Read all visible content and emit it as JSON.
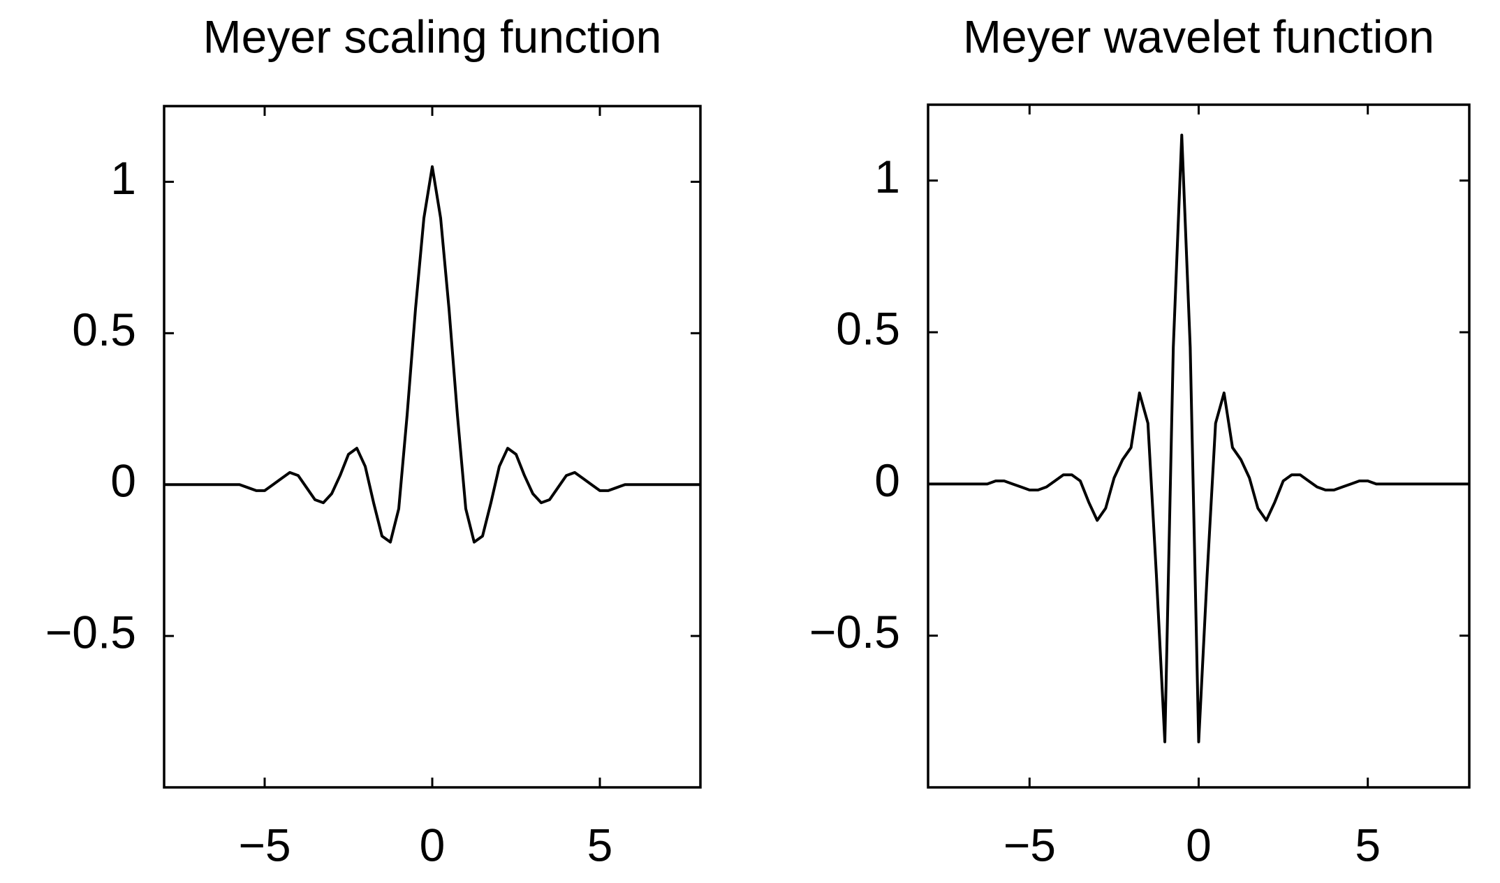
{
  "chart_data": [
    {
      "type": "line",
      "title": "Meyer scaling function",
      "color": "#000000",
      "xlim": [
        -8,
        8
      ],
      "ylim": [
        -1,
        1.25
      ],
      "xticks": [
        {
          "value": -5,
          "label": "−5"
        },
        0,
        5
      ],
      "yticks": [
        {
          "value": -0.5,
          "label": "−0.5"
        },
        0,
        0.5,
        1
      ],
      "x": [
        -8,
        -7.75,
        -7.5,
        -7.25,
        -7,
        -6.75,
        -6.5,
        -6.25,
        -6,
        -5.75,
        -5.5,
        -5.25,
        -5,
        -4.75,
        -4.5,
        -4.25,
        -4,
        -3.75,
        -3.5,
        -3.25,
        -3,
        -2.75,
        -2.5,
        -2.25,
        -2,
        -1.75,
        -1.5,
        -1.25,
        -1,
        -0.75,
        -0.5,
        -0.25,
        0,
        0.25,
        0.5,
        0.75,
        1,
        1.25,
        1.5,
        1.75,
        2,
        2.25,
        2.5,
        2.75,
        3,
        3.25,
        3.5,
        3.75,
        4,
        4.25,
        4.5,
        4.75,
        5,
        5.25,
        5.5,
        5.75,
        6,
        6.25,
        6.5,
        6.75,
        7,
        7.25,
        7.5,
        7.75,
        8
      ],
      "values": [
        0,
        0,
        0,
        0,
        0,
        0,
        0,
        0,
        0,
        0,
        -0.01,
        -0.02,
        -0.02,
        0,
        0.02,
        0.04,
        0.03,
        -0.01,
        -0.05,
        -0.06,
        -0.03,
        0.03,
        0.1,
        0.12,
        0.06,
        -0.06,
        -0.17,
        -0.19,
        -0.08,
        0.23,
        0.58,
        0.88,
        1.05,
        0.88,
        0.58,
        0.23,
        -0.08,
        -0.19,
        -0.17,
        -0.06,
        0.06,
        0.12,
        0.1,
        0.03,
        -0.03,
        -0.06,
        -0.05,
        -0.01,
        0.03,
        0.04,
        0.02,
        0,
        -0.02,
        -0.02,
        -0.01,
        0,
        0,
        0,
        0,
        0,
        0,
        0,
        0,
        0,
        0
      ]
    },
    {
      "type": "line",
      "title": "Meyer wavelet function",
      "color": "#000000",
      "xlim": [
        -8,
        8
      ],
      "ylim": [
        -1,
        1.25
      ],
      "xticks": [
        {
          "value": -5,
          "label": "−5"
        },
        0,
        5
      ],
      "yticks": [
        {
          "value": -0.5,
          "label": "−0.5"
        },
        0,
        0.5,
        1
      ],
      "x": [
        -8,
        -7.75,
        -7.5,
        -7.25,
        -7,
        -6.75,
        -6.5,
        -6.25,
        -6,
        -5.75,
        -5.5,
        -5.25,
        -5,
        -4.75,
        -4.5,
        -4.25,
        -4,
        -3.75,
        -3.5,
        -3.25,
        -3,
        -2.75,
        -2.5,
        -2.25,
        -2,
        -1.75,
        -1.5,
        -1.25,
        -1,
        -0.75,
        -0.5,
        -0.25,
        0,
        0.25,
        0.5,
        0.75,
        1,
        1.25,
        1.5,
        1.75,
        2,
        2.25,
        2.5,
        2.75,
        3,
        3.25,
        3.5,
        3.75,
        4,
        4.25,
        4.5,
        4.75,
        5,
        5.25,
        5.5,
        5.75,
        6,
        6.25,
        6.5,
        6.75,
        7,
        7.25,
        7.5,
        7.75,
        8
      ],
      "values": [
        0,
        0,
        0,
        0,
        0,
        0,
        0,
        0,
        0.01,
        0.01,
        0,
        -0.01,
        -0.02,
        -0.02,
        -0.01,
        0.01,
        0.03,
        0.03,
        0.01,
        -0.06,
        -0.12,
        -0.08,
        0.02,
        0.08,
        0.12,
        0.3,
        0.2,
        -0.3,
        -0.85,
        0.45,
        1.15,
        0.45,
        -0.85,
        -0.3,
        0.2,
        0.3,
        0.12,
        0.08,
        0.02,
        -0.08,
        -0.12,
        -0.06,
        0.01,
        0.03,
        0.03,
        0.01,
        -0.01,
        -0.02,
        -0.02,
        -0.01,
        0,
        0.01,
        0.01,
        0,
        0,
        0,
        0,
        0,
        0,
        0,
        0,
        0,
        0,
        0,
        0
      ]
    }
  ]
}
